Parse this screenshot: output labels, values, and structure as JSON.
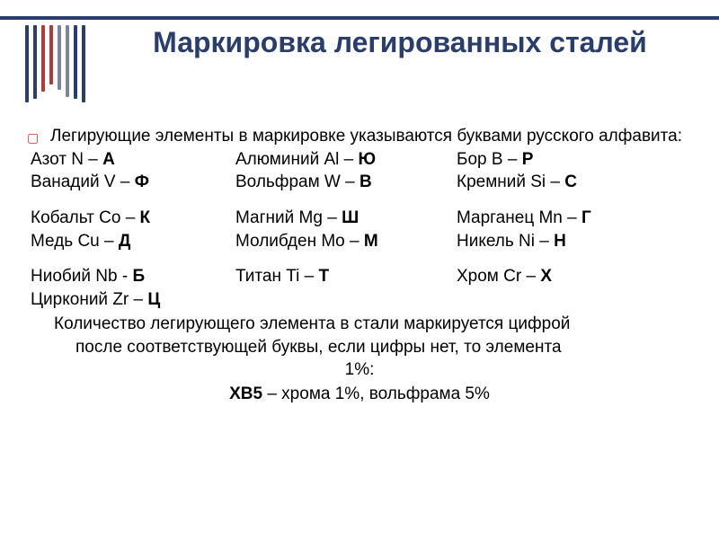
{
  "deco_bars": {
    "colors": [
      "#2a3e6e",
      "#2a3e6e",
      "#b23a3a",
      "#b23a3a",
      "#7a849c",
      "#7a849c",
      "#2a3e6e",
      "#2a3e6e"
    ],
    "heights": [
      86,
      82,
      74,
      66,
      72,
      80,
      82,
      86
    ]
  },
  "title": "Маркировка легированных сталей",
  "lead": "Легирующие элементы в маркировке указываются буквами русского алфавита:",
  "rows": [
    {
      "c1_t": "Азот N – ",
      "c1_b": "А",
      "c2_t": "Алюминий Al – ",
      "c2_b": "Ю",
      "c3_t": "Бор B – ",
      "c3_b": "Р"
    },
    {
      "c1_t": "Ванадий V – ",
      "c1_b": "Ф",
      "c2_t": "Вольфрам W – ",
      "c2_b": "В",
      "c3_t": "Кремний Si – ",
      "c3_b": "С"
    }
  ],
  "rows2": [
    {
      "c1_t": "Кобальт Co – ",
      "c1_b": "К",
      "c2_t": "Магний Mg – ",
      "c2_b": "Ш",
      "c3_t": "Марганец Mn – ",
      "c3_b": "Г"
    },
    {
      "c1_t": "Медь Cu – ",
      "c1_b": "Д",
      "c2_t": "Молибден Mo – ",
      "c2_b": "М",
      "c3_t": "Никель Ni – ",
      "c3_b": "Н"
    }
  ],
  "rows3": [
    {
      "c1_t": "Ниобий Nb - ",
      "c1_b": "Б",
      "c2_t": "Титан Ti – ",
      "c2_b": "Т",
      "c3_t": "Хром Cr – ",
      "c3_b": "Х"
    }
  ],
  "single_row": {
    "t": "Цирконий Zr – ",
    "b": "Ц"
  },
  "note_line1": "Количество легирующего элемента в стали маркируется цифрой",
  "note_line2": "после соответствующей буквы, если цифры нет, то элемента",
  "note_line3": "1%:",
  "example_bold": "ХВ5",
  "example_rest": " – хрома 1%, вольфрама 5%"
}
